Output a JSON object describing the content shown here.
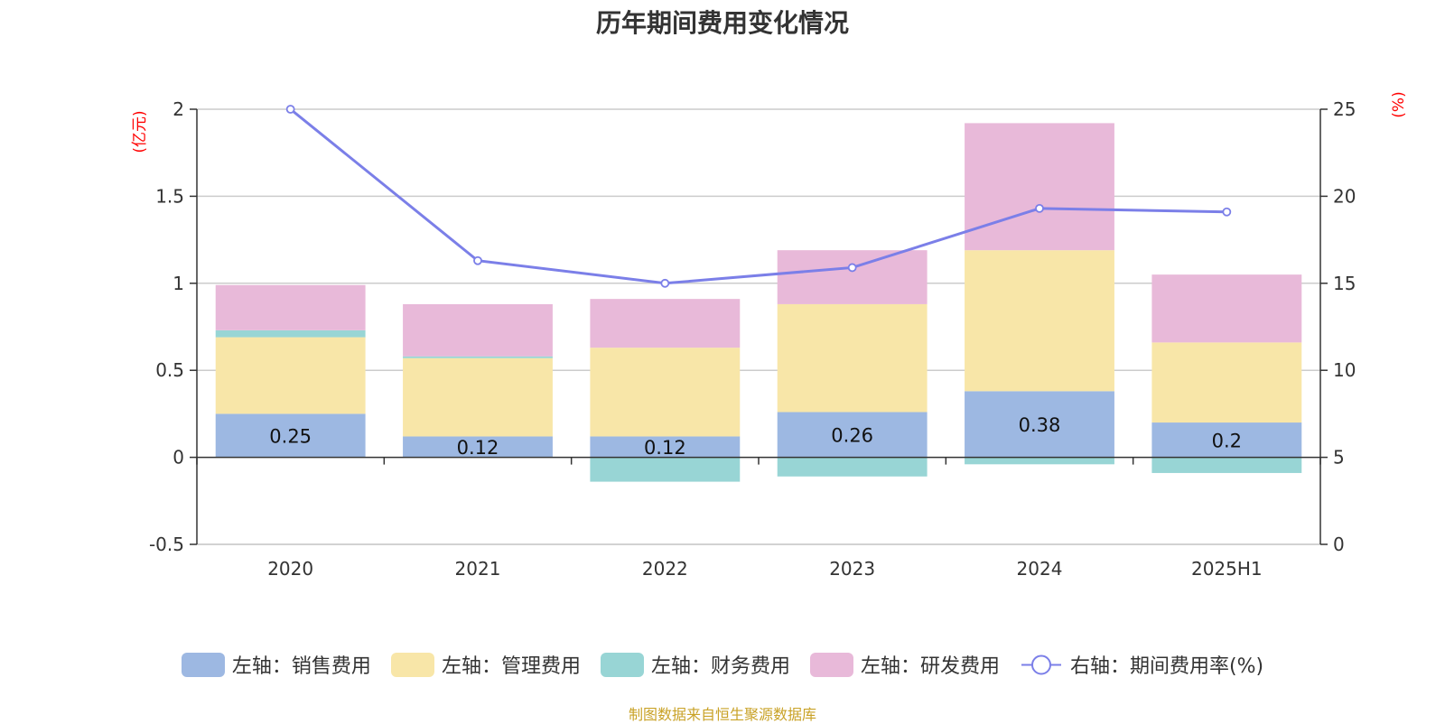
{
  "chart_data": {
    "type": "bar",
    "stacked": true,
    "title": "历年期间费用变化情况",
    "categories": [
      "2020",
      "2021",
      "2022",
      "2023",
      "2024",
      "2025H1"
    ],
    "left_axis": {
      "unit_label": "(亿元)",
      "ylim": [
        -0.5,
        2
      ],
      "ticks": [
        "-0.5",
        "0",
        "0.5",
        "1",
        "1.5",
        "2"
      ]
    },
    "right_axis": {
      "unit_label": "(%)",
      "ylim": [
        0,
        25
      ],
      "ticks": [
        "0",
        "5",
        "10",
        "15",
        "20",
        "25"
      ]
    },
    "series": [
      {
        "name": "左轴：销售费用",
        "kind": "bar",
        "axis": "left",
        "color": "#9db8e2",
        "values": [
          0.25,
          0.12,
          0.12,
          0.26,
          0.38,
          0.2
        ],
        "labels": [
          "0.25",
          "0.12",
          "0.12",
          "0.26",
          "0.38",
          "0.2"
        ]
      },
      {
        "name": "左轴：管理费用",
        "kind": "bar",
        "axis": "left",
        "color": "#f8e6a8",
        "values": [
          0.44,
          0.45,
          0.51,
          0.62,
          0.81,
          0.46
        ]
      },
      {
        "name": "左轴：财务费用",
        "kind": "bar",
        "axis": "left",
        "color": "#98d5d5",
        "values": [
          0.04,
          0.01,
          -0.14,
          -0.11,
          -0.04,
          -0.09
        ]
      },
      {
        "name": "左轴：研发费用",
        "kind": "bar",
        "axis": "left",
        "color": "#e8b9d9",
        "values": [
          0.26,
          0.3,
          0.28,
          0.31,
          0.73,
          0.39
        ]
      },
      {
        "name": "右轴：期间费用率(%)",
        "kind": "line",
        "axis": "right",
        "color": "#7b7fe8",
        "values": [
          25.0,
          16.3,
          15.0,
          15.9,
          19.3,
          19.1
        ]
      }
    ],
    "grid": true,
    "legend_position": "bottom"
  },
  "source_note": "制图数据来自恒生聚源数据库"
}
